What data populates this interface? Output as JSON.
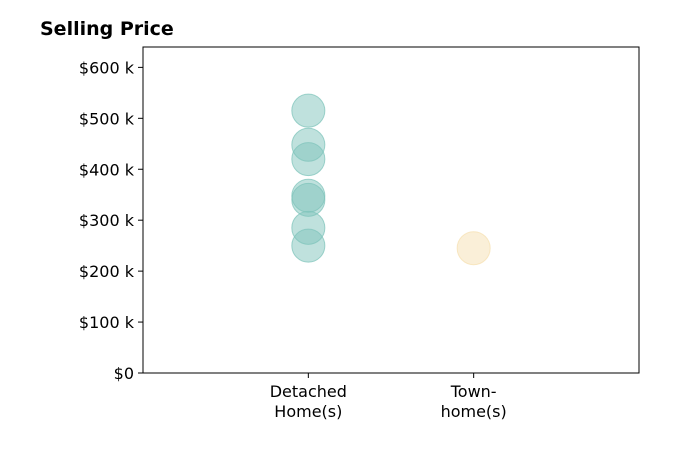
{
  "chart_data": {
    "type": "scatter",
    "title": "Selling Price",
    "xlabel": "",
    "ylabel": "",
    "categories": [
      [
        "Detached",
        "Home(s)"
      ],
      [
        "Town-",
        "home(s)"
      ]
    ],
    "xlim": [
      -1,
      2
    ],
    "ylim": [
      0,
      640
    ],
    "yticks": [
      0,
      100,
      200,
      300,
      400,
      500,
      600
    ],
    "ytick_labels": [
      "$0",
      "$100 k",
      "$200 k",
      "$300 k",
      "$400 k",
      "$500 k",
      "$600 k"
    ],
    "grid": false,
    "series": [
      {
        "category": 0,
        "color": "#7fc4bb",
        "values": [
          250,
          285,
          340,
          348,
          420,
          448,
          515
        ]
      },
      {
        "category": 1,
        "color": "#f5e0b2",
        "values": [
          245
        ]
      }
    ]
  }
}
